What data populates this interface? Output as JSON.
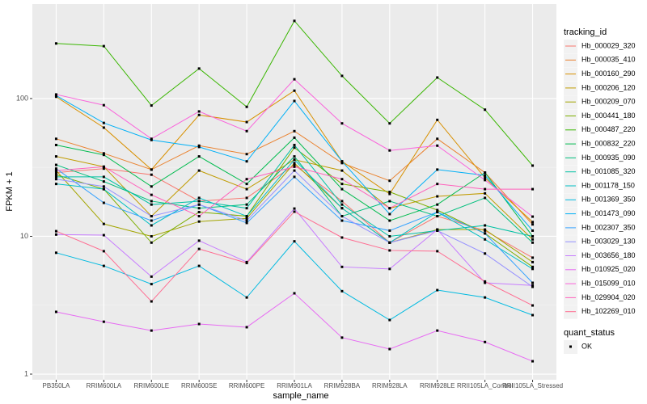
{
  "chart_data": {
    "type": "line",
    "x_label": "sample_name",
    "y_label": "FPKM + 1",
    "categories": [
      "PB350LA",
      "RRIM600LA",
      "RRIM600LE",
      "RRIM600SE",
      "RRIM600PE",
      "RRIM901LA",
      "RRIM928BA",
      "RRIM928LA",
      "RRIM928LE",
      "RRII105LA_Control",
      "RRII105LA_Stressed"
    ],
    "ylim": [
      0.91,
      485
    ],
    "yticks": [
      1,
      10,
      100
    ],
    "y_log": true,
    "grid": true,
    "legend_position": "right",
    "legend_title": "tracking_id",
    "shape_legend": {
      "title": "quant_status",
      "labels": [
        "OK"
      ]
    },
    "series": [
      {
        "name": "Hb_000029_320",
        "color": "#F8766D",
        "values": [
          29,
          31,
          28,
          18,
          19,
          33,
          18,
          9,
          14,
          11,
          7
        ]
      },
      {
        "name": "Hb_000035_410",
        "color": "#EA8331",
        "values": [
          51,
          40,
          30.5,
          45.5,
          39.5,
          58,
          34,
          25.3,
          51,
          29,
          12.2
        ]
      },
      {
        "name": "Hb_000160_290",
        "color": "#D89000",
        "values": [
          103,
          61.5,
          30.5,
          76,
          67.5,
          114,
          35,
          20.3,
          70,
          26.6,
          12.7
        ]
      },
      {
        "name": "Hb_000206_120",
        "color": "#C09B00",
        "values": [
          38,
          32,
          14,
          30,
          22,
          36,
          30,
          16,
          19.5,
          20.5,
          9.5
        ]
      },
      {
        "name": "Hb_000209_070",
        "color": "#A3A500",
        "values": [
          30,
          12.3,
          10,
          12.8,
          13.5,
          34,
          16,
          9,
          11.2,
          11.2,
          6.5
        ]
      },
      {
        "name": "Hb_000441_180",
        "color": "#7CAE00",
        "values": [
          28,
          22,
          9,
          15,
          14,
          44,
          24,
          21,
          15.5,
          10.5,
          6
        ]
      },
      {
        "name": "Hb_000487_220",
        "color": "#39B600",
        "values": [
          251,
          240,
          89,
          165,
          87,
          366,
          146,
          66,
          142,
          83,
          32.6
        ]
      },
      {
        "name": "Hb_000832_220",
        "color": "#00BB4E",
        "values": [
          46,
          39,
          23,
          38,
          24,
          52,
          22,
          13,
          17,
          29,
          10
        ]
      },
      {
        "name": "Hb_000935_090",
        "color": "#00BF7D",
        "values": [
          33,
          25,
          18,
          16,
          17,
          38,
          14,
          18,
          14,
          19,
          9
        ]
      },
      {
        "name": "Hb_001085_320",
        "color": "#00C1A3",
        "values": [
          27,
          27,
          17,
          18,
          16,
          46,
          17,
          10,
          11,
          12,
          10
        ]
      },
      {
        "name": "Hb_001178_150",
        "color": "#00BFC4",
        "values": [
          24,
          22,
          12,
          19,
          14,
          36,
          16,
          9,
          15,
          9.5,
          5.8
        ]
      },
      {
        "name": "Hb_001369_350",
        "color": "#00BAE0",
        "values": [
          7.6,
          6.1,
          4.5,
          6.1,
          3.6,
          9.2,
          4.0,
          2.47,
          4.07,
          3.6,
          2.68
        ]
      },
      {
        "name": "Hb_001473_090",
        "color": "#00B0F6",
        "values": [
          105,
          66.5,
          50,
          44.5,
          35,
          96,
          35,
          14.5,
          30.5,
          27.7,
          11
        ]
      },
      {
        "name": "Hb_002307_350",
        "color": "#35A2FF",
        "values": [
          31,
          17.5,
          13,
          17,
          12.5,
          27,
          13,
          11,
          15,
          10.5,
          4.6
        ]
      },
      {
        "name": "Hb_003029_130",
        "color": "#9590FF",
        "values": [
          26,
          23,
          14,
          17,
          13,
          30,
          14,
          9,
          11,
          7.5,
          4.3
        ]
      },
      {
        "name": "Hb_003656_180",
        "color": "#C77CFF",
        "values": [
          10.3,
          10.2,
          5.1,
          9.3,
          6.5,
          15.9,
          6.0,
          5.8,
          11.2,
          4.6,
          4.4
        ]
      },
      {
        "name": "Hb_010925_020",
        "color": "#E76BF3",
        "values": [
          2.83,
          2.4,
          2.07,
          2.31,
          2.19,
          3.86,
          1.84,
          1.52,
          2.07,
          1.71,
          1.24
        ]
      },
      {
        "name": "Hb_015099_010",
        "color": "#FA62DB",
        "values": [
          107,
          89.5,
          51,
          80.6,
          58,
          138,
          66,
          42,
          45.5,
          25.6,
          13.9
        ]
      },
      {
        "name": "Hb_029904_020",
        "color": "#FF62BC",
        "values": [
          30,
          32,
          20,
          14,
          26,
          32,
          26,
          16,
          24,
          22,
          22
        ]
      },
      {
        "name": "Hb_102269_010",
        "color": "#FF6C91",
        "values": [
          10.9,
          7.8,
          3.37,
          8.1,
          6.4,
          15.1,
          9.8,
          7.9,
          7.8,
          4.7,
          3.15
        ]
      }
    ]
  }
}
